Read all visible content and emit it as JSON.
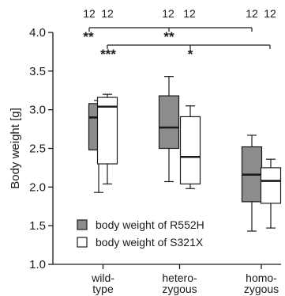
{
  "chart_data": {
    "type": "boxplot",
    "ylabel": "Body weight [g]",
    "ylim": [
      1.0,
      4.0
    ],
    "yticks": [
      "1.0",
      "1.5",
      "2.0",
      "2.5",
      "3.0",
      "3.5",
      "4.0"
    ],
    "categories": [
      {
        "line1": "wild-",
        "line2": "type"
      },
      {
        "line1": "hetero-",
        "line2": "zygous"
      },
      {
        "line1": "homo-",
        "line2": "zygous"
      }
    ],
    "series": [
      {
        "name": "body weight of R552H",
        "color": "#8c8c8c",
        "boxes": [
          {
            "min": 1.93,
            "q1": 2.48,
            "median": 2.9,
            "q3": 3.08,
            "max": 3.12
          },
          {
            "min": 2.07,
            "q1": 2.5,
            "median": 2.77,
            "q3": 3.18,
            "max": 3.43
          },
          {
            "min": 1.43,
            "q1": 1.81,
            "median": 2.16,
            "q3": 2.52,
            "max": 2.67
          }
        ]
      },
      {
        "name": "body weight of S321X",
        "color": "#ffffff",
        "boxes": [
          {
            "min": 2.04,
            "q1": 2.3,
            "median": 3.04,
            "q3": 3.16,
            "max": 3.2
          },
          {
            "min": 1.98,
            "q1": 2.04,
            "median": 2.39,
            "q3": 2.91,
            "max": 3.05
          },
          {
            "min": 1.47,
            "q1": 1.79,
            "median": 2.08,
            "q3": 2.25,
            "max": 2.36
          }
        ]
      }
    ],
    "n_labels": [
      "12",
      "12",
      "12",
      "12",
      "12",
      "12"
    ],
    "significance": [
      {
        "stars": "**",
        "series": 0,
        "from_category": 0,
        "to_category": 2,
        "mid_category": 1,
        "mid_stars": "**"
      },
      {
        "stars": "***",
        "series": 1,
        "from_category": 0,
        "to_category": 2,
        "mid_category": 1,
        "mid_stars": "*"
      }
    ]
  }
}
